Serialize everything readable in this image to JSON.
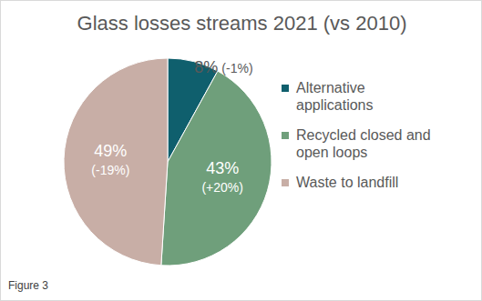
{
  "chart_data": {
    "type": "pie",
    "title": "Glass losses streams 2021 (vs 2010)",
    "categories": [
      "Alternative applications",
      "Recycled closed and open loops",
      "Waste to landfill"
    ],
    "values": [
      8,
      43,
      49
    ],
    "value_labels": [
      "8%",
      "43%",
      "49%"
    ],
    "changes": [
      -1,
      20,
      -19
    ],
    "change_labels": [
      "(-1%)",
      "(+20%)",
      "(-19%)"
    ],
    "colors": [
      "#0f5f6d",
      "#6f9f7b",
      "#c8aea6"
    ],
    "data_labels": true,
    "legend": "right",
    "annotation": "Figure 3"
  }
}
